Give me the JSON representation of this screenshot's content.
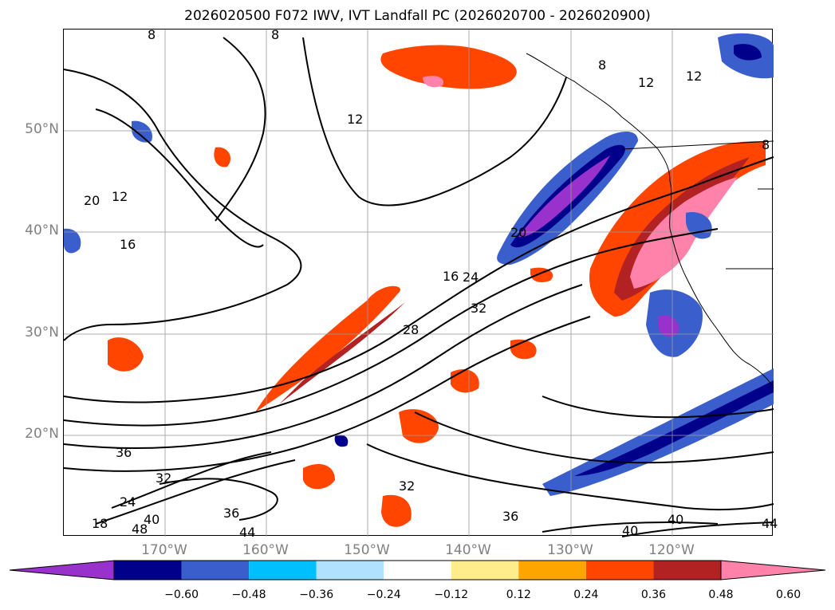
{
  "title": "2026020500 F072 IWV, IVT Landfall PC (2026020700 - 2026020900)",
  "map": {
    "projection": "lat-lon",
    "lon_range": [
      -180,
      -110
    ],
    "lat_range": [
      10,
      60
    ],
    "grid": true,
    "lat_labels": [
      "50°N",
      "40°N",
      "30°N",
      "20°N"
    ],
    "lon_labels": [
      "170°W",
      "160°W",
      "150°W",
      "140°W",
      "130°W",
      "120°W"
    ],
    "contour_labels": [
      "8",
      "8",
      "8",
      "8",
      "12",
      "12",
      "12",
      "12",
      "20",
      "16",
      "20",
      "16",
      "24",
      "28",
      "32",
      "36",
      "32",
      "24",
      "18",
      "40",
      "48",
      "36",
      "44",
      "32",
      "36",
      "40",
      "40",
      "44"
    ]
  },
  "colorbar": {
    "ticks": [
      "−0.60",
      "−0.48",
      "−0.36",
      "−0.24",
      "−0.12",
      "0.12",
      "0.24",
      "0.36",
      "0.48",
      "0.60"
    ],
    "colors": [
      "#9932cc",
      "#00008b",
      "#3a5fcd",
      "#00bfff",
      "#b0e2ff",
      "#ffffff",
      "#ffec8b",
      "#ffa500",
      "#ff4500",
      "#b22222",
      "#ff82ab"
    ],
    "extend": "both"
  }
}
